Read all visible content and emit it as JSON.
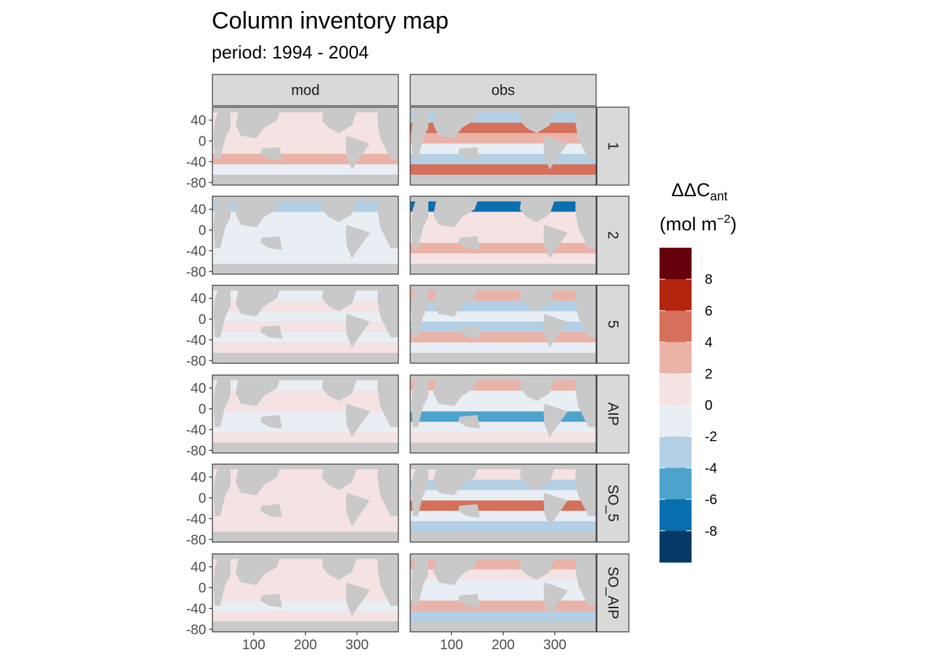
{
  "title": "Column inventory map",
  "subtitle": "period: 1994 - 2004",
  "chart_data": {
    "type": "heatmap",
    "facets": {
      "columns": [
        "mod",
        "obs"
      ],
      "rows": [
        "1",
        "2",
        "5",
        "AIP",
        "SO_5",
        "SO_AIP"
      ]
    },
    "x_axis": {
      "ticks": [
        100,
        200,
        300
      ],
      "range": [
        20,
        380
      ]
    },
    "y_axis": {
      "ticks": [
        40,
        0,
        -40,
        -80
      ],
      "range": [
        -85,
        65
      ]
    },
    "legend": {
      "title_main": "ΔΔC",
      "title_sub": "ant",
      "unit": "(mol m",
      "unit_sup": "−2",
      "unit_close": ")",
      "position": "right",
      "breaks": [
        8,
        6,
        4,
        2,
        0,
        -2,
        -4,
        -6,
        -8
      ],
      "break_labels": [
        "8",
        "6",
        "4",
        "2",
        "0",
        "-2",
        "-4",
        "-6",
        "-8"
      ],
      "bins": [
        {
          "range": [
            8,
            10
          ],
          "color": "#67000d"
        },
        {
          "range": [
            6,
            8
          ],
          "color": "#b2260d"
        },
        {
          "range": [
            4,
            6
          ],
          "color": "#d6705a"
        },
        {
          "range": [
            2,
            4
          ],
          "color": "#ebb2a8"
        },
        {
          "range": [
            0,
            2
          ],
          "color": "#f5e3e3"
        },
        {
          "range": [
            -2,
            0
          ],
          "color": "#e8eef4"
        },
        {
          "range": [
            -4,
            -2
          ],
          "color": "#b3d0e6"
        },
        {
          "range": [
            -6,
            -4
          ],
          "color": "#4ea3cd"
        },
        {
          "range": [
            -8,
            -6
          ],
          "color": "#0a6fae"
        },
        {
          "range": [
            -10,
            -8
          ],
          "color": "#053b66"
        }
      ]
    },
    "land_color": "#c9c9c9"
  }
}
